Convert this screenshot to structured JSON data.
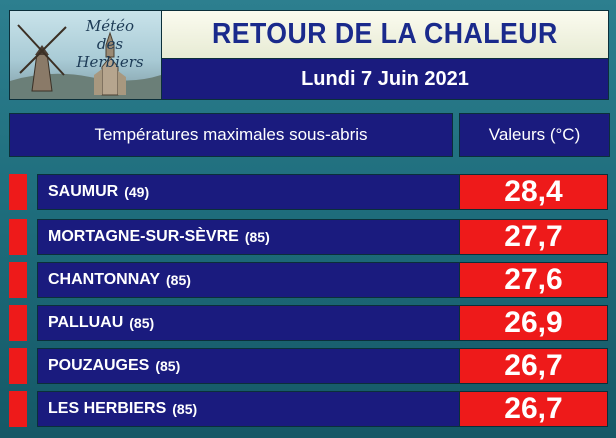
{
  "header": {
    "logo": {
      "line1": "Météo",
      "line2": "des Herbiers"
    },
    "title": "RETOUR DE LA CHALEUR",
    "date": "Lundi 7 Juin 2021"
  },
  "table": {
    "col_station": "Températures maximales sous-abris",
    "col_value": "Valeurs (°C)",
    "rows": [
      {
        "city": "SAUMUR",
        "dept": "(49)",
        "value": "28,4"
      },
      {
        "city": "MORTAGNE-SUR-SÈVRE",
        "dept": "(85)",
        "value": "27,7"
      },
      {
        "city": "CHANTONNAY",
        "dept": "(85)",
        "value": "27,6"
      },
      {
        "city": "PALLUAU",
        "dept": "(85)",
        "value": "26,9"
      },
      {
        "city": "POUZAUGES",
        "dept": "(85)",
        "value": "26,7"
      },
      {
        "city": "LES HERBIERS",
        "dept": "(85)",
        "value": "26,7"
      }
    ]
  },
  "colors": {
    "navy": "#1a1b7e",
    "red": "#ee1a1a",
    "title_text": "#1a2a8c",
    "background": "#1f6e7d"
  }
}
